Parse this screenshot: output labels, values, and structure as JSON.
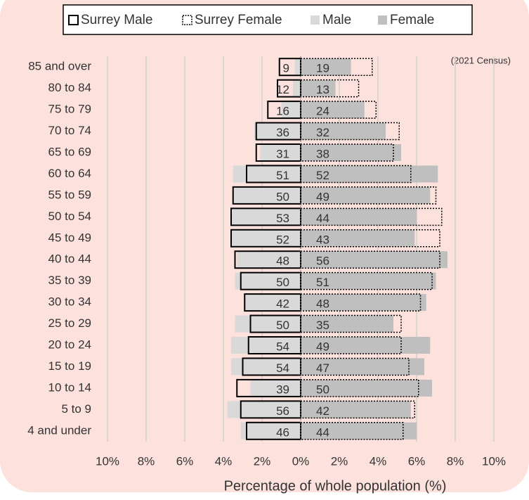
{
  "chart_data": {
    "type": "pyramid",
    "annotation": "(2021 Census)",
    "xlabel": "Percentage of whole population (%)",
    "categories": [
      "85 and over",
      "80 to 84",
      "75 to 79",
      "70 to 74",
      "65 to 69",
      "60 to 64",
      "55 to 59",
      "50 to 54",
      "45 to 49",
      "40 to 44",
      "35 to 39",
      "30 to 34",
      "25 to 29",
      "20 to 24",
      "15 to 19",
      "10 to 14",
      "5 to 9",
      "4 and under"
    ],
    "series": [
      {
        "name": "Male",
        "side": "left",
        "style": "fill",
        "color": "#d9d9d9",
        "values": [
          0.3,
          0.4,
          1.0,
          2.4,
          2.1,
          3.5,
          3.5,
          3.6,
          3.6,
          3.3,
          3.4,
          2.9,
          3.4,
          3.6,
          3.6,
          2.6,
          3.8,
          3.1
        ],
        "counts": [
          9,
          12,
          16,
          36,
          31,
          51,
          50,
          53,
          52,
          48,
          50,
          42,
          50,
          54,
          54,
          39,
          56,
          46
        ]
      },
      {
        "name": "Female",
        "side": "right",
        "style": "fill",
        "color": "#bfbfbf",
        "values": [
          2.6,
          1.8,
          3.3,
          4.4,
          5.2,
          7.1,
          6.7,
          6.0,
          5.9,
          7.6,
          7.0,
          6.5,
          4.8,
          6.7,
          6.4,
          6.8,
          5.7,
          6.0
        ],
        "counts": [
          19,
          13,
          24,
          32,
          38,
          52,
          49,
          44,
          43,
          56,
          51,
          48,
          35,
          49,
          47,
          50,
          42,
          44
        ]
      },
      {
        "name": "Surrey Male",
        "side": "left",
        "style": "solid",
        "color": "#000000",
        "values": [
          1.1,
          1.2,
          1.7,
          2.3,
          2.3,
          2.8,
          3.5,
          3.6,
          3.6,
          3.4,
          3.1,
          2.9,
          2.6,
          2.7,
          3.0,
          3.3,
          3.1,
          2.8
        ]
      },
      {
        "name": "Surrey Female",
        "side": "right",
        "style": "dotted",
        "color": "#000000",
        "values": [
          3.7,
          3.0,
          3.9,
          5.1,
          4.8,
          5.7,
          7.0,
          7.3,
          7.2,
          7.2,
          6.8,
          6.2,
          5.2,
          5.2,
          5.6,
          6.1,
          5.9,
          5.3
        ]
      }
    ],
    "legend_order": [
      2,
      3,
      0,
      1
    ],
    "xlim": [
      -10,
      10
    ],
    "xticks": [
      {
        "value": -10,
        "label": "10%"
      },
      {
        "value": -8,
        "label": "8%"
      },
      {
        "value": -6,
        "label": "6%"
      },
      {
        "value": -4,
        "label": "4%"
      },
      {
        "value": -2,
        "label": "2%"
      },
      {
        "value": 0,
        "label": "0%"
      },
      {
        "value": 2,
        "label": "2%"
      },
      {
        "value": 4,
        "label": "4%"
      },
      {
        "value": 6,
        "label": "6%"
      },
      {
        "value": 8,
        "label": "8%"
      },
      {
        "value": 10,
        "label": "10%"
      }
    ],
    "grid": true
  }
}
